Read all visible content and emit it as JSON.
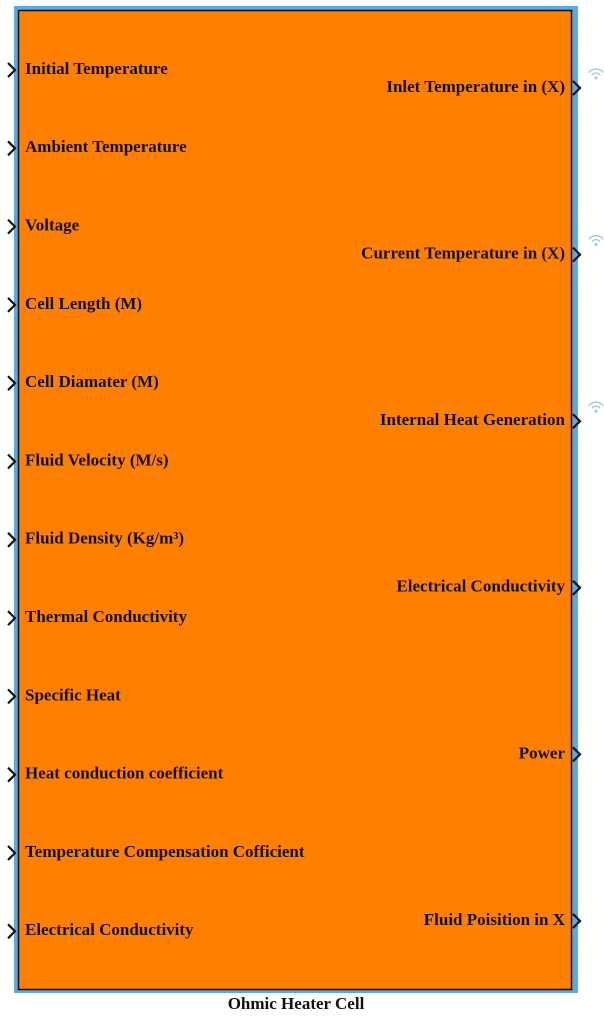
{
  "block": {
    "name": "Ohmic Heater Cell",
    "inputs": [
      "Initial Temperature",
      "Ambient Temperature",
      "Voltage",
      "Cell Length (M)",
      "Cell Diamater (M)",
      "Fluid Velocity (M/s)",
      "Fluid Density (Kg/m³)",
      "Thermal Conductivity",
      "Specific Heat",
      "Heat conduction coefficient",
      "Temperature Compensation Cofficient",
      "Electrical Conductivity"
    ],
    "outputs": [
      "Inlet Temperature in (X)",
      "Current Temperature in (X)",
      "Internal Heat Generation",
      "Electrical Conductivity",
      "Power",
      "Fluid Poisition in X"
    ]
  }
}
